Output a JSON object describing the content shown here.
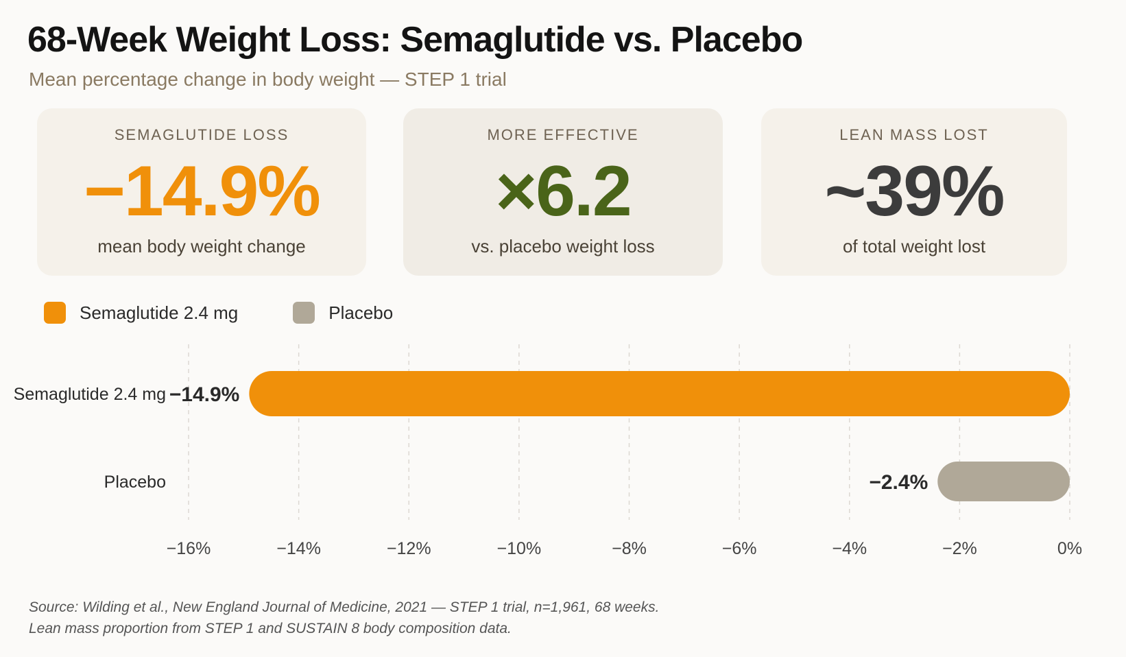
{
  "title": "68-Week Weight Loss: Semaglutide vs. Placebo",
  "subtitle": "Mean percentage change in body weight — STEP 1 trial",
  "cards": [
    {
      "label": "SEMAGLUTIDE LOSS",
      "value": "−14.9%",
      "desc": "mean body weight change",
      "color": "#f0900a"
    },
    {
      "label": "MORE EFFECTIVE",
      "value": "×6.2",
      "desc": "vs. placebo weight loss",
      "color": "#4a6419"
    },
    {
      "label": "LEAN MASS LOST",
      "value": "~39%",
      "desc": "of total weight lost",
      "color": "#3c3c3c"
    }
  ],
  "legend": [
    {
      "label": "Semaglutide 2.4 mg",
      "color": "#f0900a"
    },
    {
      "label": "Placebo",
      "color": "#b0a898"
    }
  ],
  "chart_data": {
    "type": "bar",
    "orientation": "horizontal",
    "categories": [
      "Semaglutide 2.4 mg",
      "Placebo"
    ],
    "values": [
      -14.9,
      -2.4
    ],
    "value_labels": [
      "−14.9%",
      "−2.4%"
    ],
    "colors": [
      "#f0900a",
      "#b0a898"
    ],
    "xlim": [
      -16,
      0
    ],
    "xticks": [
      -16,
      -14,
      -12,
      -10,
      -8,
      -6,
      -4,
      -2,
      0
    ],
    "xtick_labels": [
      "−16%",
      "−14%",
      "−12%",
      "−10%",
      "−8%",
      "−6%",
      "−4%",
      "−2%",
      "0%"
    ],
    "grid": "vertical dashed",
    "legend_position": "top-left"
  },
  "footer": {
    "line1": "Source: Wilding et al., New England Journal of Medicine, 2021 — STEP 1 trial, n=1,961, 68 weeks.",
    "line2": "Lean mass proportion from STEP 1 and SUSTAIN 8 body composition data."
  }
}
